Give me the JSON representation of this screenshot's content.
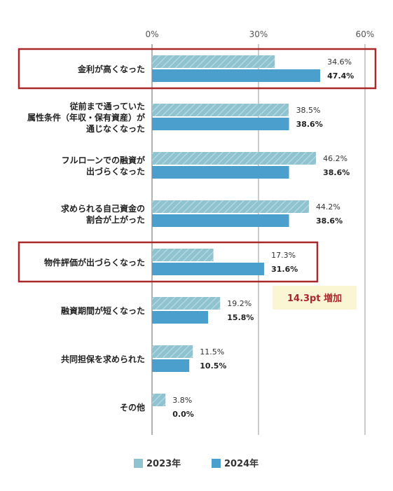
{
  "chart_data": {
    "type": "bar",
    "orientation": "horizontal",
    "categories": [
      [
        "金利が高くなった"
      ],
      [
        "従前まで通っていた",
        "属性条件（年収・保有資産）が",
        "通じなくなった"
      ],
      [
        "フルローンでの融資が",
        "出づらくなった"
      ],
      [
        "求められる自己資金の",
        "割合が上がった"
      ],
      [
        "物件評価が出づらくなった"
      ],
      [
        "融資期間が短くなった"
      ],
      [
        "共同担保を求められた"
      ],
      [
        "その他"
      ]
    ],
    "series": [
      {
        "name": "2023年",
        "values": [
          34.6,
          38.5,
          46.2,
          44.2,
          17.3,
          19.2,
          11.5,
          3.8
        ],
        "labels": [
          "34.6%",
          "38.5%",
          "46.2%",
          "44.2%",
          "17.3%",
          "19.2%",
          "11.5%",
          "3.8%"
        ],
        "color": "#8fc3d0",
        "pattern": "diagonal-stripes"
      },
      {
        "name": "2024年",
        "values": [
          47.4,
          38.6,
          38.6,
          38.6,
          31.6,
          15.8,
          10.5,
          0.0
        ],
        "labels": [
          "47.4%",
          "38.6%",
          "38.6%",
          "38.6%",
          "31.6%",
          "15.8%",
          "10.5%",
          "0.0%"
        ],
        "color": "#4a9fcc"
      }
    ],
    "x_ticks": [
      {
        "value": 0,
        "label": "0%"
      },
      {
        "value": 30,
        "label": "30%"
      },
      {
        "value": 60,
        "label": "60%"
      }
    ],
    "xlim": [
      0,
      60
    ],
    "grid": true,
    "legend_position": "bottom-center",
    "highlighted_categories": [
      0,
      4
    ],
    "highlight_color": "#a8282c",
    "annotation": {
      "text": "14.3pt 増加",
      "category_index": 4,
      "background": "#faf5d2",
      "color": "#a8282c"
    }
  }
}
